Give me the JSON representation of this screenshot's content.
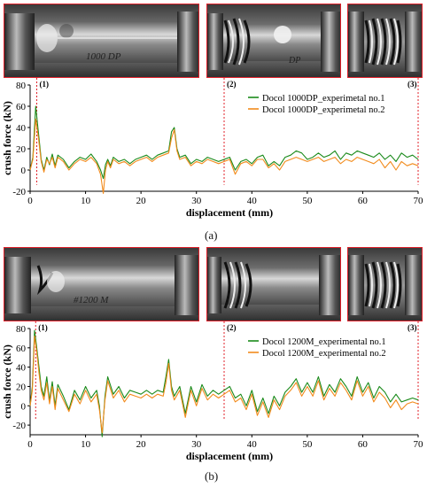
{
  "figure": {
    "panel_a_label": "(a)",
    "panel_b_label": "(b)"
  },
  "photos_a": [
    {
      "caption": "1000 DP"
    },
    {
      "caption": "DP"
    },
    {
      "caption": ""
    }
  ],
  "photos_b": [
    {
      "caption": "#1200 M"
    },
    {
      "caption": ""
    },
    {
      "caption": ""
    }
  ],
  "chart_data": [
    {
      "type": "line",
      "title": "",
      "xlabel": "displacement (mm)",
      "ylabel": "crush force (kN)",
      "xlim": [
        0,
        70
      ],
      "ylim": [
        -20,
        80
      ],
      "xticks": [
        0,
        10,
        20,
        30,
        40,
        50,
        60,
        70
      ],
      "yticks": [
        -20,
        0,
        20,
        40,
        60,
        80
      ],
      "grid": false,
      "legend_position": "top-right",
      "stages": [
        {
          "label": "(1)",
          "x": 1.2
        },
        {
          "label": "(2)",
          "x": 35
        },
        {
          "label": "(3)",
          "x": 70
        }
      ],
      "series": [
        {
          "name": "Docol 1000DP_experimetal no.1",
          "color": "#1a8a1a",
          "x": [
            0,
            0.5,
            1.0,
            1.5,
            2.0,
            2.5,
            3.0,
            3.5,
            4.0,
            4.5,
            5.0,
            6.0,
            7.0,
            8.0,
            9.0,
            10.0,
            11.0,
            12.0,
            12.7,
            13.2,
            13.6,
            14.0,
            14.5,
            15.0,
            16.0,
            17.0,
            18.0,
            19.0,
            20.0,
            21.0,
            22.0,
            23.0,
            24.0,
            25.0,
            25.5,
            26.0,
            26.5,
            27.0,
            28.0,
            29.0,
            30.0,
            31.0,
            32.0,
            33.0,
            34.0,
            35.0,
            36.0,
            37.0,
            38.0,
            39.0,
            40.0,
            41.0,
            42.0,
            43.0,
            44.0,
            45.0,
            46.0,
            47.0,
            48.0,
            49.0,
            50.0,
            51.0,
            52.0,
            53.0,
            54.0,
            55.0,
            56.0,
            57.0,
            58.0,
            59.0,
            60.0,
            61.0,
            62.0,
            63.0,
            64.0,
            65.0,
            66.0,
            67.0,
            68.0,
            69.0,
            70.0
          ],
          "values": [
            0,
            12,
            60,
            35,
            10,
            0,
            12,
            5,
            15,
            4,
            14,
            10,
            2,
            8,
            12,
            10,
            15,
            8,
            0,
            -8,
            5,
            10,
            4,
            12,
            8,
            10,
            6,
            10,
            12,
            14,
            10,
            14,
            16,
            18,
            36,
            40,
            20,
            12,
            14,
            6,
            10,
            8,
            12,
            10,
            8,
            10,
            12,
            0,
            8,
            10,
            6,
            12,
            14,
            4,
            8,
            4,
            12,
            14,
            18,
            16,
            10,
            12,
            16,
            12,
            14,
            18,
            10,
            16,
            14,
            18,
            16,
            14,
            12,
            16,
            10,
            14,
            8,
            16,
            12,
            14,
            10
          ]
        },
        {
          "name": "Docol 1000DP_experimetal no.2",
          "color": "#f28b1c",
          "x": [
            0,
            0.5,
            1.0,
            1.5,
            2.0,
            2.5,
            3.0,
            3.5,
            4.0,
            4.5,
            5.0,
            6.0,
            7.0,
            8.0,
            9.0,
            10.0,
            11.0,
            12.0,
            12.7,
            13.2,
            13.6,
            14.0,
            14.5,
            15.0,
            16.0,
            17.0,
            18.0,
            19.0,
            20.0,
            21.0,
            22.0,
            23.0,
            24.0,
            25.0,
            25.5,
            26.0,
            26.5,
            27.0,
            28.0,
            29.0,
            30.0,
            31.0,
            32.0,
            33.0,
            34.0,
            35.0,
            36.0,
            37.0,
            38.0,
            39.0,
            40.0,
            41.0,
            42.0,
            43.0,
            44.0,
            45.0,
            46.0,
            47.0,
            48.0,
            49.0,
            50.0,
            51.0,
            52.0,
            53.0,
            54.0,
            55.0,
            56.0,
            57.0,
            58.0,
            59.0,
            60.0,
            61.0,
            62.0,
            63.0,
            64.0,
            65.0,
            66.0,
            67.0,
            68.0,
            69.0,
            70.0
          ],
          "values": [
            0,
            10,
            48,
            30,
            8,
            -2,
            10,
            6,
            12,
            2,
            12,
            8,
            0,
            6,
            10,
            8,
            12,
            6,
            -4,
            -22,
            0,
            8,
            2,
            10,
            6,
            8,
            4,
            8,
            10,
            12,
            8,
            12,
            14,
            16,
            30,
            38,
            18,
            10,
            12,
            4,
            8,
            6,
            10,
            8,
            6,
            8,
            10,
            -4,
            6,
            8,
            4,
            10,
            10,
            2,
            6,
            0,
            8,
            10,
            12,
            10,
            8,
            10,
            12,
            8,
            10,
            12,
            6,
            10,
            8,
            12,
            10,
            8,
            6,
            10,
            2,
            8,
            0,
            8,
            4,
            6,
            4
          ]
        }
      ]
    },
    {
      "type": "line",
      "title": "",
      "xlabel": "displacement (mm)",
      "ylabel": "crush force (kN)",
      "xlim": [
        0,
        70
      ],
      "ylim": [
        -30,
        80
      ],
      "xticks": [
        0,
        10,
        20,
        30,
        40,
        50,
        60,
        70
      ],
      "yticks": [
        -20,
        0,
        20,
        40,
        60,
        80
      ],
      "grid": false,
      "legend_position": "top-right",
      "stages": [
        {
          "label": "(1)",
          "x": 1.0
        },
        {
          "label": "(2)",
          "x": 35
        },
        {
          "label": "(3)",
          "x": 70
        }
      ],
      "series": [
        {
          "name": "Docol 1200M_experimental no.1",
          "color": "#1a8a1a",
          "x": [
            0,
            0.4,
            0.8,
            1.2,
            1.6,
            2.0,
            2.5,
            3.0,
            3.5,
            4.0,
            4.5,
            5.0,
            6.0,
            7.0,
            8.0,
            9.0,
            10.0,
            11.0,
            12.0,
            12.5,
            13.0,
            13.5,
            14.0,
            15.0,
            16.0,
            17.0,
            18.0,
            19.0,
            20.0,
            21.0,
            22.0,
            23.0,
            24.0,
            24.5,
            25.0,
            25.5,
            26.0,
            27.0,
            28.0,
            29.0,
            30.0,
            31.0,
            32.0,
            33.0,
            34.0,
            35.0,
            36.0,
            37.0,
            38.0,
            39.0,
            40.0,
            41.0,
            42.0,
            43.0,
            44.0,
            45.0,
            46.0,
            47.0,
            48.0,
            49.0,
            50.0,
            51.0,
            52.0,
            53.0,
            54.0,
            55.0,
            56.0,
            57.0,
            58.0,
            59.0,
            60.0,
            61.0,
            62.0,
            63.0,
            64.0,
            65.0,
            66.0,
            67.0,
            68.0,
            69.0,
            70.0
          ],
          "values": [
            0,
            20,
            78,
            60,
            40,
            20,
            10,
            30,
            5,
            25,
            0,
            22,
            10,
            -4,
            16,
            6,
            20,
            8,
            16,
            0,
            -32,
            10,
            30,
            12,
            20,
            8,
            16,
            14,
            12,
            16,
            12,
            16,
            14,
            30,
            48,
            20,
            10,
            20,
            -8,
            20,
            4,
            22,
            10,
            16,
            12,
            16,
            20,
            8,
            12,
            0,
            16,
            -6,
            8,
            -8,
            10,
            0,
            14,
            20,
            28,
            14,
            24,
            14,
            30,
            10,
            22,
            14,
            28,
            20,
            10,
            30,
            14,
            24,
            8,
            20,
            14,
            4,
            12,
            4,
            6,
            8,
            6
          ]
        },
        {
          "name": "Docol 1200M_experimental no.2",
          "color": "#f28b1c",
          "x": [
            0,
            0.4,
            0.8,
            1.2,
            1.6,
            2.0,
            2.5,
            3.0,
            3.5,
            4.0,
            4.5,
            5.0,
            6.0,
            7.0,
            8.0,
            9.0,
            10.0,
            11.0,
            12.0,
            12.5,
            13.0,
            13.5,
            14.0,
            15.0,
            16.0,
            17.0,
            18.0,
            19.0,
            20.0,
            21.0,
            22.0,
            23.0,
            24.0,
            24.5,
            25.0,
            25.5,
            26.0,
            27.0,
            28.0,
            29.0,
            30.0,
            31.0,
            32.0,
            33.0,
            34.0,
            35.0,
            36.0,
            37.0,
            38.0,
            39.0,
            40.0,
            41.0,
            42.0,
            43.0,
            44.0,
            45.0,
            46.0,
            47.0,
            48.0,
            49.0,
            50.0,
            51.0,
            52.0,
            53.0,
            54.0,
            55.0,
            56.0,
            57.0,
            58.0,
            59.0,
            60.0,
            61.0,
            62.0,
            63.0,
            64.0,
            65.0,
            66.0,
            67.0,
            68.0,
            69.0,
            70.0
          ],
          "values": [
            0,
            16,
            72,
            56,
            34,
            16,
            6,
            24,
            2,
            20,
            -4,
            18,
            6,
            -6,
            12,
            2,
            16,
            4,
            12,
            -4,
            -28,
            6,
            26,
            8,
            16,
            4,
            12,
            10,
            8,
            12,
            8,
            12,
            10,
            24,
            44,
            16,
            6,
            16,
            -12,
            16,
            0,
            18,
            6,
            12,
            8,
            12,
            16,
            4,
            8,
            -4,
            12,
            -10,
            4,
            -12,
            6,
            -4,
            10,
            16,
            24,
            10,
            20,
            10,
            26,
            6,
            18,
            10,
            24,
            16,
            6,
            26,
            10,
            20,
            4,
            14,
            8,
            -2,
            6,
            -4,
            2,
            4,
            2
          ]
        }
      ]
    }
  ]
}
